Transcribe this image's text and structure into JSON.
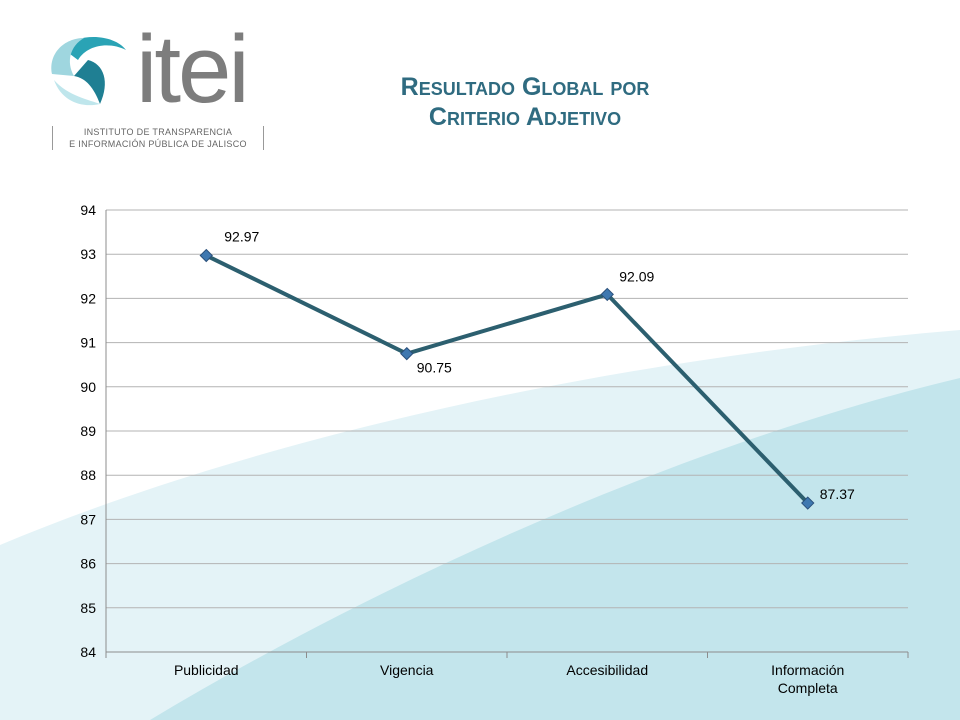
{
  "slide": {
    "title_line1": "Resultado Global por",
    "title_line2": "Criterio Adjetivo"
  },
  "logo": {
    "word": "itei",
    "tagline_line1": "INSTITUTO DE TRANSPARENCIA",
    "tagline_line2": "E INFORMACIÓN PÚBLICA DE JALISCO"
  },
  "colors": {
    "line": "#2c5f6f",
    "marker": "#3f78b0",
    "grid": "#b3b3b3",
    "title": "#2f6b80"
  },
  "chart_data": {
    "type": "line",
    "categories": [
      "Publicidad",
      "Vigencia",
      "Accesibilidad",
      "Información Completa"
    ],
    "category_lines": [
      [
        "Publicidad"
      ],
      [
        "Vigencia"
      ],
      [
        "Accesibilidad"
      ],
      [
        "Información",
        "Completa"
      ]
    ],
    "values": [
      92.97,
      90.75,
      92.09,
      87.37
    ],
    "value_labels": [
      "92.97",
      "90.75",
      "92.09",
      "87.37"
    ],
    "ylim": [
      84,
      94
    ],
    "yticks": [
      84,
      85,
      86,
      87,
      88,
      89,
      90,
      91,
      92,
      93,
      94
    ],
    "grid": true,
    "legend": "none"
  }
}
